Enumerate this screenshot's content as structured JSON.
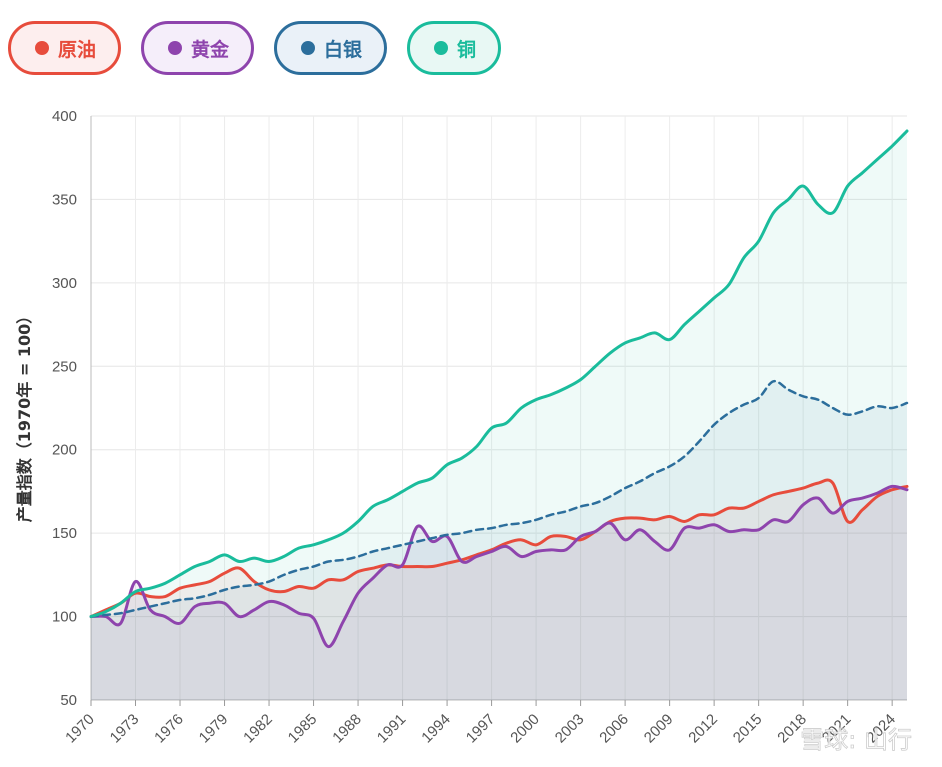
{
  "legend": [
    {
      "label": "原油",
      "color": "#e74c3c",
      "bg": "#fdeeee"
    },
    {
      "label": "黄金",
      "color": "#8e44ad",
      "bg": "#f5eefa"
    },
    {
      "label": "白银",
      "color": "#2c6e9c",
      "bg": "#eaf1f8"
    },
    {
      "label": "铜",
      "color": "#1abc9c",
      "bg": "#e8f8f4"
    }
  ],
  "watermark": "雪球: 山行",
  "chart_data": {
    "type": "line",
    "ylabel": "产量指数（1970年 = 100）",
    "ylim": [
      50,
      400
    ],
    "yticks": [
      50,
      100,
      150,
      200,
      250,
      300,
      350,
      400
    ],
    "xlim": [
      1970,
      2025
    ],
    "xticks": [
      "1970",
      "1973",
      "1976",
      "1979",
      "1982",
      "1985",
      "1988",
      "1991",
      "1994",
      "1997",
      "2000",
      "2003",
      "2006",
      "2009",
      "2012",
      "2015",
      "2018",
      "2021",
      "2024"
    ],
    "grid": true,
    "legend_position": "top-left",
    "series": [
      {
        "name": "原油",
        "style": "solid",
        "fill": true,
        "x": [
          1970,
          1971,
          1972,
          1973,
          1974,
          1975,
          1976,
          1977,
          1978,
          1979,
          1980,
          1981,
          1982,
          1983,
          1984,
          1985,
          1986,
          1987,
          1988,
          1989,
          1990,
          1991,
          1992,
          1993,
          1994,
          1995,
          1996,
          1997,
          1998,
          1999,
          2000,
          2001,
          2002,
          2003,
          2004,
          2005,
          2006,
          2007,
          2008,
          2009,
          2010,
          2011,
          2012,
          2013,
          2014,
          2015,
          2016,
          2017,
          2018,
          2019,
          2020,
          2021,
          2022,
          2023,
          2024,
          2025
        ],
        "y": [
          100,
          104,
          108,
          114,
          112,
          112,
          117,
          119,
          121,
          126,
          129,
          121,
          116,
          115,
          118,
          117,
          122,
          122,
          127,
          129,
          131,
          130,
          130,
          130,
          132,
          134,
          137,
          140,
          144,
          146,
          143,
          148,
          148,
          146,
          151,
          157,
          159,
          159,
          158,
          160,
          157,
          161,
          161,
          165,
          165,
          169,
          173,
          175,
          177,
          180,
          180,
          157,
          164,
          172,
          176,
          178
        ]
      },
      {
        "name": "黄金",
        "style": "solid",
        "fill": true,
        "x": [
          1970,
          1971,
          1972,
          1973,
          1974,
          1975,
          1976,
          1977,
          1978,
          1979,
          1980,
          1981,
          1982,
          1983,
          1984,
          1985,
          1986,
          1987,
          1988,
          1989,
          1990,
          1991,
          1992,
          1993,
          1994,
          1995,
          1996,
          1997,
          1998,
          1999,
          2000,
          2001,
          2002,
          2003,
          2004,
          2005,
          2006,
          2007,
          2008,
          2009,
          2010,
          2011,
          2012,
          2013,
          2014,
          2015,
          2016,
          2017,
          2018,
          2019,
          2020,
          2021,
          2022,
          2023,
          2024,
          2025
        ],
        "y": [
          100,
          100,
          96,
          121,
          104,
          100,
          96,
          106,
          108,
          108,
          100,
          104,
          109,
          107,
          102,
          99,
          82,
          97,
          114,
          123,
          131,
          131,
          154,
          145,
          148,
          133,
          136,
          139,
          142,
          136,
          139,
          140,
          140,
          148,
          151,
          156,
          146,
          152,
          145,
          140,
          153,
          153,
          155,
          151,
          152,
          152,
          158,
          157,
          167,
          171,
          162,
          169,
          171,
          174,
          178,
          176
        ]
      },
      {
        "name": "白银",
        "style": "dashed",
        "fill": true,
        "x": [
          1970,
          1971,
          1972,
          1973,
          1974,
          1975,
          1976,
          1977,
          1978,
          1979,
          1980,
          1981,
          1982,
          1983,
          1984,
          1985,
          1986,
          1987,
          1988,
          1989,
          1990,
          1991,
          1992,
          1993,
          1994,
          1995,
          1996,
          1997,
          1998,
          1999,
          2000,
          2001,
          2002,
          2003,
          2004,
          2005,
          2006,
          2007,
          2008,
          2009,
          2010,
          2011,
          2012,
          2013,
          2014,
          2015,
          2016,
          2017,
          2018,
          2019,
          2020,
          2021,
          2022,
          2023,
          2024,
          2025
        ],
        "y": [
          100,
          101,
          102,
          104,
          106,
          108,
          110,
          111,
          113,
          116,
          118,
          119,
          121,
          125,
          128,
          130,
          133,
          134,
          136,
          139,
          141,
          143,
          145,
          147,
          149,
          150,
          152,
          153,
          155,
          156,
          158,
          161,
          163,
          166,
          168,
          172,
          177,
          181,
          186,
          190,
          196,
          205,
          215,
          222,
          227,
          231,
          241,
          236,
          232,
          230,
          225,
          221,
          223,
          226,
          225,
          228
        ]
      },
      {
        "name": "铜",
        "style": "solid",
        "fill": true,
        "x": [
          1970,
          1971,
          1972,
          1973,
          1974,
          1975,
          1976,
          1977,
          1978,
          1979,
          1980,
          1981,
          1982,
          1983,
          1984,
          1985,
          1986,
          1987,
          1988,
          1989,
          1990,
          1991,
          1992,
          1993,
          1994,
          1995,
          1996,
          1997,
          1998,
          1999,
          2000,
          2001,
          2002,
          2003,
          2004,
          2005,
          2006,
          2007,
          2008,
          2009,
          2010,
          2011,
          2012,
          2013,
          2014,
          2015,
          2016,
          2017,
          2018,
          2019,
          2020,
          2021,
          2022,
          2023,
          2024,
          2025
        ],
        "y": [
          100,
          103,
          108,
          115,
          117,
          120,
          125,
          130,
          133,
          137,
          133,
          135,
          133,
          136,
          141,
          143,
          146,
          150,
          157,
          166,
          170,
          175,
          180,
          183,
          191,
          195,
          202,
          213,
          216,
          225,
          230,
          233,
          237,
          242,
          250,
          258,
          264,
          267,
          270,
          266,
          275,
          283,
          291,
          299,
          315,
          325,
          342,
          350,
          358,
          347,
          342,
          358,
          366,
          374,
          382,
          391
        ]
      }
    ]
  }
}
